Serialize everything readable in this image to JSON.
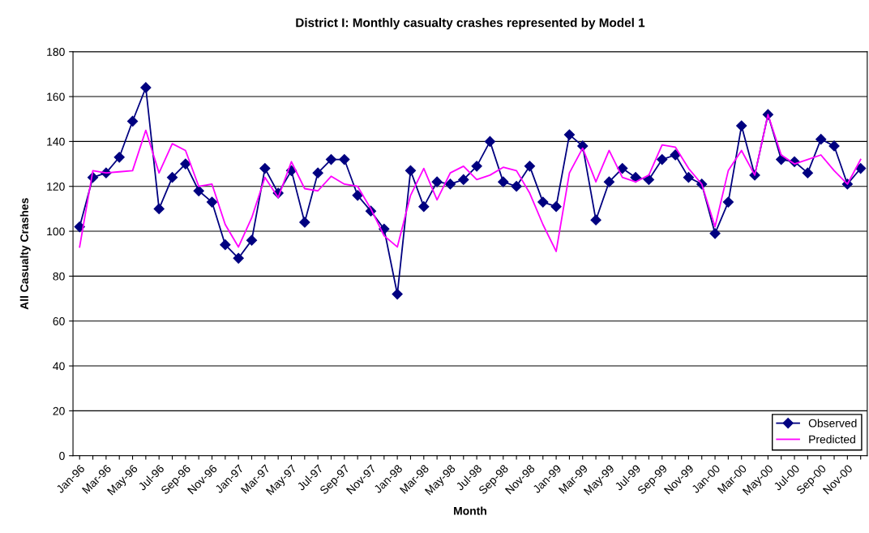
{
  "chart_data": {
    "type": "line",
    "title": "District I: Monthly casualty crashes represented by Model 1",
    "xlabel": "Month",
    "ylabel": "All Casualty Crashes",
    "categories": [
      "Jan-96",
      null,
      "Mar-96",
      null,
      "May-96",
      null,
      "Jul-96",
      null,
      "Sep-96",
      null,
      "Nov-96",
      null,
      "Jan-97",
      null,
      "Mar-97",
      null,
      "May-97",
      null,
      "Jul-97",
      null,
      "Sep-97",
      null,
      "Nov-97",
      null,
      "Jan-98",
      null,
      "Mar-98",
      null,
      "May-98",
      null,
      "Jul-98",
      null,
      "Sep-98",
      null,
      "Nov-98",
      null,
      "Jan-99",
      null,
      "Mar-99",
      null,
      "May-99",
      null,
      "Jul-99",
      null,
      "Sep-99",
      null,
      "Nov-99",
      null,
      "Jan-00",
      null,
      "Mar-00",
      null,
      "May-00",
      null,
      "Jul-00",
      null,
      "Sep-00",
      null,
      "Nov-00",
      null
    ],
    "series": [
      {
        "name": "Observed",
        "color": "#000080",
        "marker": "diamond",
        "values": [
          102,
          124,
          126,
          133,
          149,
          164,
          110,
          124,
          130,
          118,
          113,
          94,
          88,
          96,
          128,
          117,
          127,
          104,
          126,
          132,
          132,
          116,
          109,
          101,
          72,
          127,
          111,
          122,
          121,
          123,
          129,
          140,
          122,
          120,
          129,
          113,
          111,
          143,
          138,
          105,
          122,
          128,
          124,
          123,
          132,
          134,
          124,
          121,
          99,
          113,
          147,
          125,
          152,
          132,
          131,
          126,
          141,
          138,
          121,
          128
        ]
      },
      {
        "name": "Predicted",
        "color": "#ff00ff",
        "marker": "none",
        "values": [
          93,
          127,
          126,
          126.5,
          127,
          145,
          126,
          139,
          136,
          120,
          121,
          103,
          93,
          106,
          124,
          115,
          131,
          119,
          118,
          124.5,
          121,
          120,
          110,
          98,
          93,
          116,
          128,
          114,
          126,
          129,
          123,
          125,
          128.5,
          127,
          117,
          103,
          91,
          126,
          137,
          122,
          136,
          124,
          122,
          125,
          138.5,
          137.5,
          128,
          121,
          102,
          127,
          136,
          125,
          152,
          134,
          130,
          132,
          134,
          127,
          121,
          132
        ]
      }
    ],
    "ylim": [
      0,
      180
    ],
    "yticks": [
      0,
      20,
      40,
      60,
      80,
      100,
      120,
      140,
      160,
      180
    ],
    "grid": "y",
    "legend": "bottom right",
    "line_style": "solid"
  }
}
